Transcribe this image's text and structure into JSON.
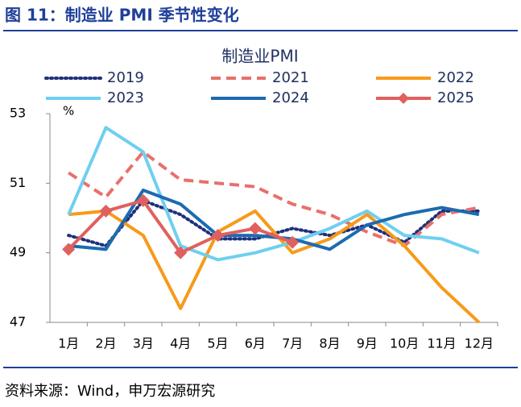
{
  "header": {
    "title": "图 11：制造业 PMI 季节性变化"
  },
  "chart_data": {
    "type": "line",
    "title": "制造业PMI",
    "y_unit": "%",
    "categories": [
      "1月",
      "2月",
      "3月",
      "4月",
      "5月",
      "6月",
      "7月",
      "8月",
      "9月",
      "10月",
      "11月",
      "12月"
    ],
    "ylim": [
      47,
      53
    ],
    "yticks": [
      47,
      49,
      51,
      53
    ],
    "series": [
      {
        "name": "2019",
        "color": "#1f2f7a",
        "style": "dotted",
        "values": [
          49.5,
          49.2,
          50.5,
          50.1,
          49.4,
          49.4,
          49.7,
          49.5,
          49.8,
          49.3,
          50.2,
          50.2
        ]
      },
      {
        "name": "2021",
        "color": "#e8706b",
        "style": "dashed",
        "values": [
          51.3,
          50.6,
          51.9,
          51.1,
          51.0,
          50.9,
          50.4,
          50.1,
          49.6,
          49.2,
          50.1,
          50.3
        ]
      },
      {
        "name": "2022",
        "color": "#f79a1a",
        "style": "solid",
        "values": [
          50.1,
          50.2,
          49.5,
          47.4,
          49.6,
          50.2,
          49.0,
          49.4,
          50.1,
          49.2,
          48.0,
          47.0
        ]
      },
      {
        "name": "2023",
        "color": "#6fcff0",
        "style": "solid",
        "values": [
          50.1,
          52.6,
          51.9,
          49.2,
          48.8,
          49.0,
          49.3,
          49.7,
          50.2,
          49.5,
          49.4,
          49.0
        ]
      },
      {
        "name": "2024",
        "color": "#1c6bb0",
        "style": "solid",
        "values": [
          49.2,
          49.1,
          50.8,
          50.4,
          49.5,
          49.5,
          49.4,
          49.1,
          49.8,
          50.1,
          50.3,
          50.1
        ]
      },
      {
        "name": "2025",
        "color": "#e0605e",
        "style": "solid",
        "marker": "diamond",
        "values": [
          49.1,
          50.2,
          50.5,
          49.0,
          49.5,
          49.7,
          49.3,
          null,
          null,
          null,
          null,
          null
        ]
      }
    ]
  },
  "source": "资料来源：Wind，申万宏源研究"
}
